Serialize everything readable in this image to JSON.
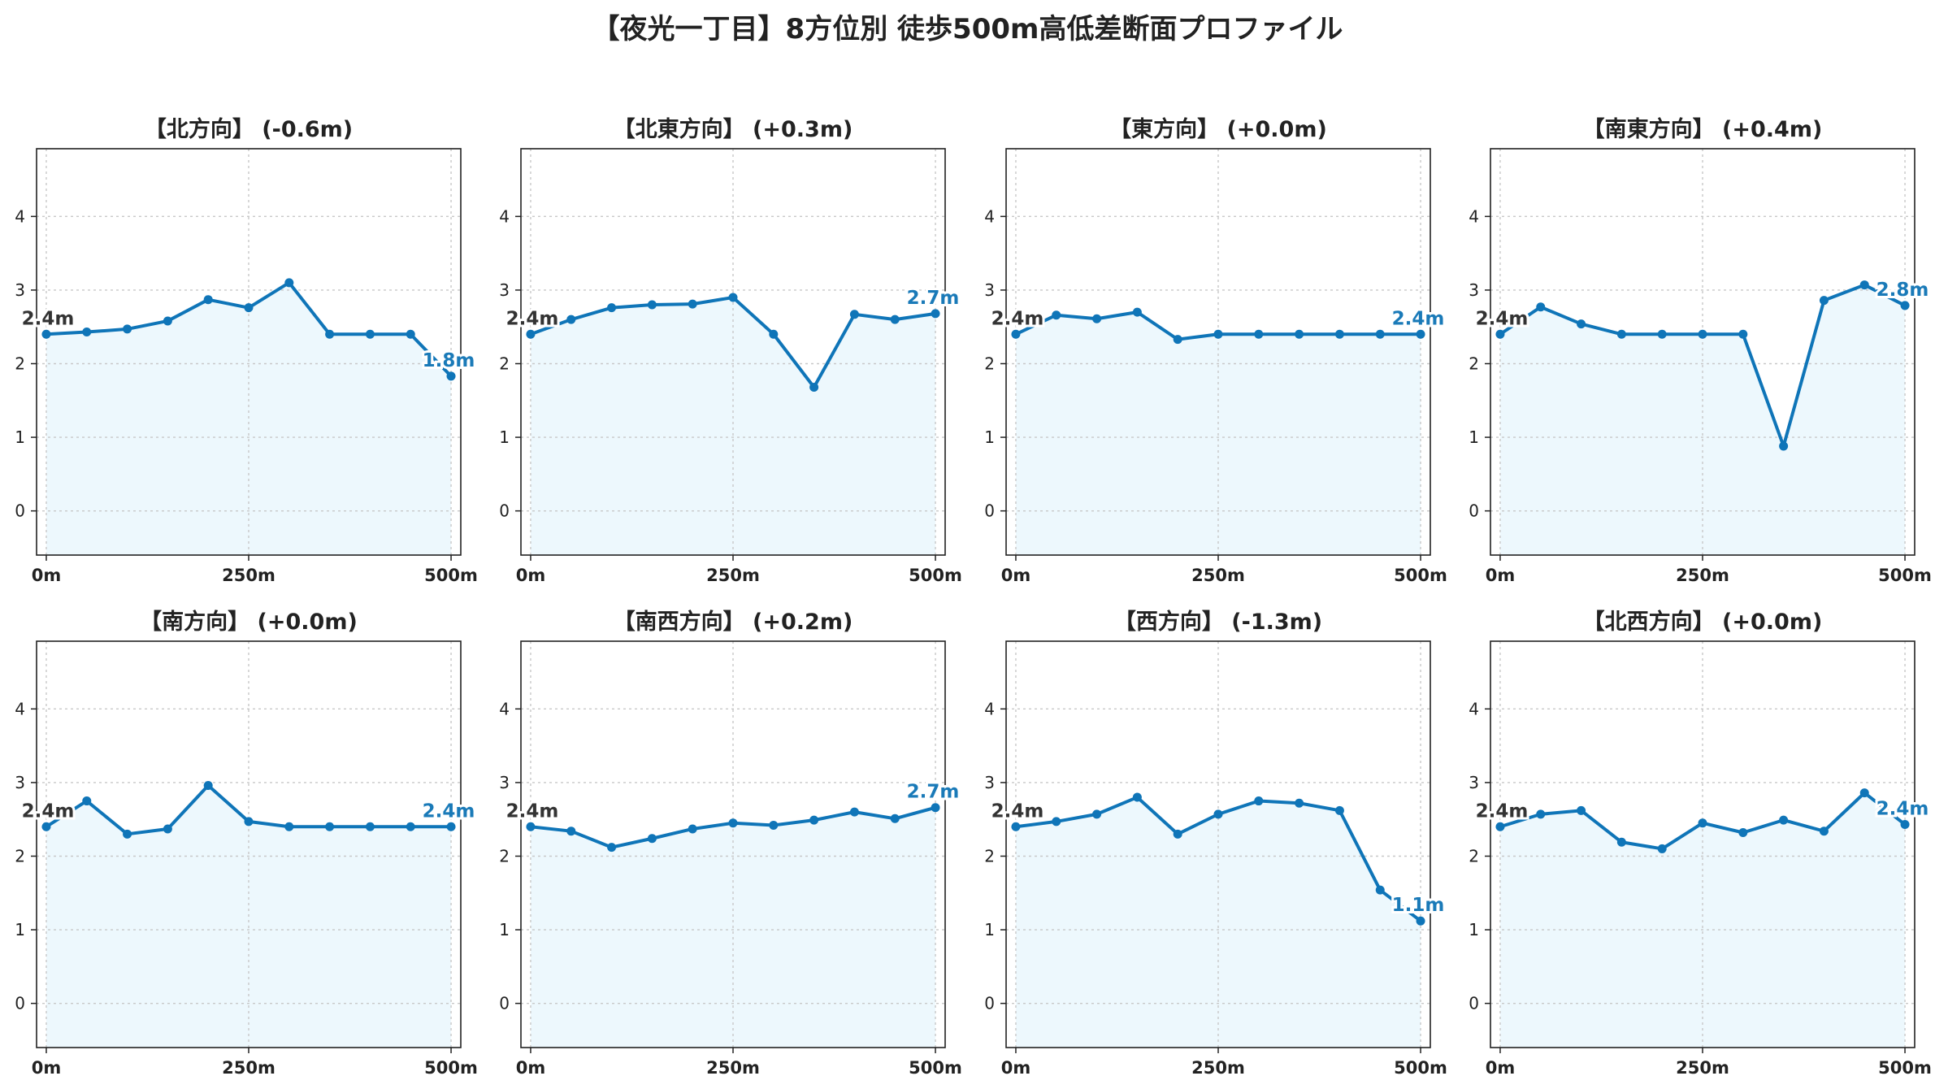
{
  "figure": {
    "title": "【夜光一丁目】8方位別 徒歩500m高低差断面プロファイル"
  },
  "colors": {
    "line": "#0f75b8",
    "fill": "#edf8fd",
    "start_label": "#333333",
    "end_label": "#1a7ab8",
    "grid": "#c8c8c8",
    "axis": "#222222"
  },
  "chart_data": [
    {
      "type": "line",
      "title": "【北方向】 (-0.6m)",
      "x": [
        0,
        50,
        100,
        150,
        200,
        250,
        300,
        350,
        400,
        450,
        500
      ],
      "y": [
        2.4,
        2.43,
        2.47,
        2.58,
        2.87,
        2.76,
        3.1,
        2.4,
        2.4,
        2.4,
        1.83
      ],
      "start_label": "2.4m",
      "end_label": "1.8m",
      "xticks": [
        0,
        250,
        500
      ],
      "xticklabels": [
        "0m",
        "250m",
        "500m"
      ],
      "yticks": [
        0,
        1,
        2,
        3,
        4
      ],
      "xlim": [
        -12,
        512
      ],
      "ylim": [
        -0.6,
        4.92
      ],
      "grid": true
    },
    {
      "type": "line",
      "title": "【北東方向】 (+0.3m)",
      "x": [
        0,
        50,
        100,
        150,
        200,
        250,
        300,
        350,
        400,
        450,
        500
      ],
      "y": [
        2.4,
        2.6,
        2.76,
        2.8,
        2.81,
        2.9,
        2.4,
        1.68,
        2.67,
        2.6,
        2.68
      ],
      "start_label": "2.4m",
      "end_label": "2.7m",
      "xticks": [
        0,
        250,
        500
      ],
      "xticklabels": [
        "0m",
        "250m",
        "500m"
      ],
      "yticks": [
        0,
        1,
        2,
        3,
        4
      ],
      "xlim": [
        -12,
        512
      ],
      "ylim": [
        -0.6,
        4.92
      ],
      "grid": true
    },
    {
      "type": "line",
      "title": "【東方向】 (+0.0m)",
      "x": [
        0,
        50,
        100,
        150,
        200,
        250,
        300,
        350,
        400,
        450,
        500
      ],
      "y": [
        2.4,
        2.66,
        2.61,
        2.7,
        2.33,
        2.4,
        2.4,
        2.4,
        2.4,
        2.4,
        2.4
      ],
      "start_label": "2.4m",
      "end_label": "2.4m",
      "xticks": [
        0,
        250,
        500
      ],
      "xticklabels": [
        "0m",
        "250m",
        "500m"
      ],
      "yticks": [
        0,
        1,
        2,
        3,
        4
      ],
      "xlim": [
        -12,
        512
      ],
      "ylim": [
        -0.6,
        4.92
      ],
      "grid": true
    },
    {
      "type": "line",
      "title": "【南東方向】 (+0.4m)",
      "x": [
        0,
        50,
        100,
        150,
        200,
        250,
        300,
        350,
        400,
        450,
        500
      ],
      "y": [
        2.4,
        2.77,
        2.54,
        2.4,
        2.4,
        2.4,
        2.4,
        0.88,
        2.86,
        3.07,
        2.79
      ],
      "start_label": "2.4m",
      "end_label": "2.8m",
      "xticks": [
        0,
        250,
        500
      ],
      "xticklabels": [
        "0m",
        "250m",
        "500m"
      ],
      "yticks": [
        0,
        1,
        2,
        3,
        4
      ],
      "xlim": [
        -12,
        512
      ],
      "ylim": [
        -0.6,
        4.92
      ],
      "grid": true
    },
    {
      "type": "line",
      "title": "【南方向】 (+0.0m)",
      "x": [
        0,
        50,
        100,
        150,
        200,
        250,
        300,
        350,
        400,
        450,
        500
      ],
      "y": [
        2.4,
        2.75,
        2.3,
        2.37,
        2.96,
        2.47,
        2.4,
        2.4,
        2.4,
        2.4,
        2.4
      ],
      "start_label": "2.4m",
      "end_label": "2.4m",
      "xticks": [
        0,
        250,
        500
      ],
      "xticklabels": [
        "0m",
        "250m",
        "500m"
      ],
      "yticks": [
        0,
        1,
        2,
        3,
        4
      ],
      "xlim": [
        -12,
        512
      ],
      "ylim": [
        -0.6,
        4.92
      ],
      "grid": true
    },
    {
      "type": "line",
      "title": "【南西方向】 (+0.2m)",
      "x": [
        0,
        50,
        100,
        150,
        200,
        250,
        300,
        350,
        400,
        450,
        500
      ],
      "y": [
        2.4,
        2.34,
        2.12,
        2.24,
        2.37,
        2.45,
        2.42,
        2.49,
        2.6,
        2.51,
        2.66
      ],
      "start_label": "2.4m",
      "end_label": "2.7m",
      "xticks": [
        0,
        250,
        500
      ],
      "xticklabels": [
        "0m",
        "250m",
        "500m"
      ],
      "yticks": [
        0,
        1,
        2,
        3,
        4
      ],
      "xlim": [
        -12,
        512
      ],
      "ylim": [
        -0.6,
        4.92
      ],
      "grid": true
    },
    {
      "type": "line",
      "title": "【西方向】 (-1.3m)",
      "x": [
        0,
        50,
        100,
        150,
        200,
        250,
        300,
        350,
        400,
        450,
        500
      ],
      "y": [
        2.4,
        2.47,
        2.57,
        2.8,
        2.3,
        2.57,
        2.75,
        2.72,
        2.62,
        1.54,
        1.12
      ],
      "start_label": "2.4m",
      "end_label": "1.1m",
      "xticks": [
        0,
        250,
        500
      ],
      "xticklabels": [
        "0m",
        "250m",
        "500m"
      ],
      "yticks": [
        0,
        1,
        2,
        3,
        4
      ],
      "xlim": [
        -12,
        512
      ],
      "ylim": [
        -0.6,
        4.92
      ],
      "grid": true
    },
    {
      "type": "line",
      "title": "【北西方向】 (+0.0m)",
      "x": [
        0,
        50,
        100,
        150,
        200,
        250,
        300,
        350,
        400,
        450,
        500
      ],
      "y": [
        2.4,
        2.57,
        2.62,
        2.19,
        2.1,
        2.45,
        2.32,
        2.49,
        2.34,
        2.86,
        2.43
      ],
      "start_label": "2.4m",
      "end_label": "2.4m",
      "xticks": [
        0,
        250,
        500
      ],
      "xticklabels": [
        "0m",
        "250m",
        "500m"
      ],
      "yticks": [
        0,
        1,
        2,
        3,
        4
      ],
      "xlim": [
        -12,
        512
      ],
      "ylim": [
        -0.6,
        4.92
      ],
      "grid": true
    }
  ]
}
